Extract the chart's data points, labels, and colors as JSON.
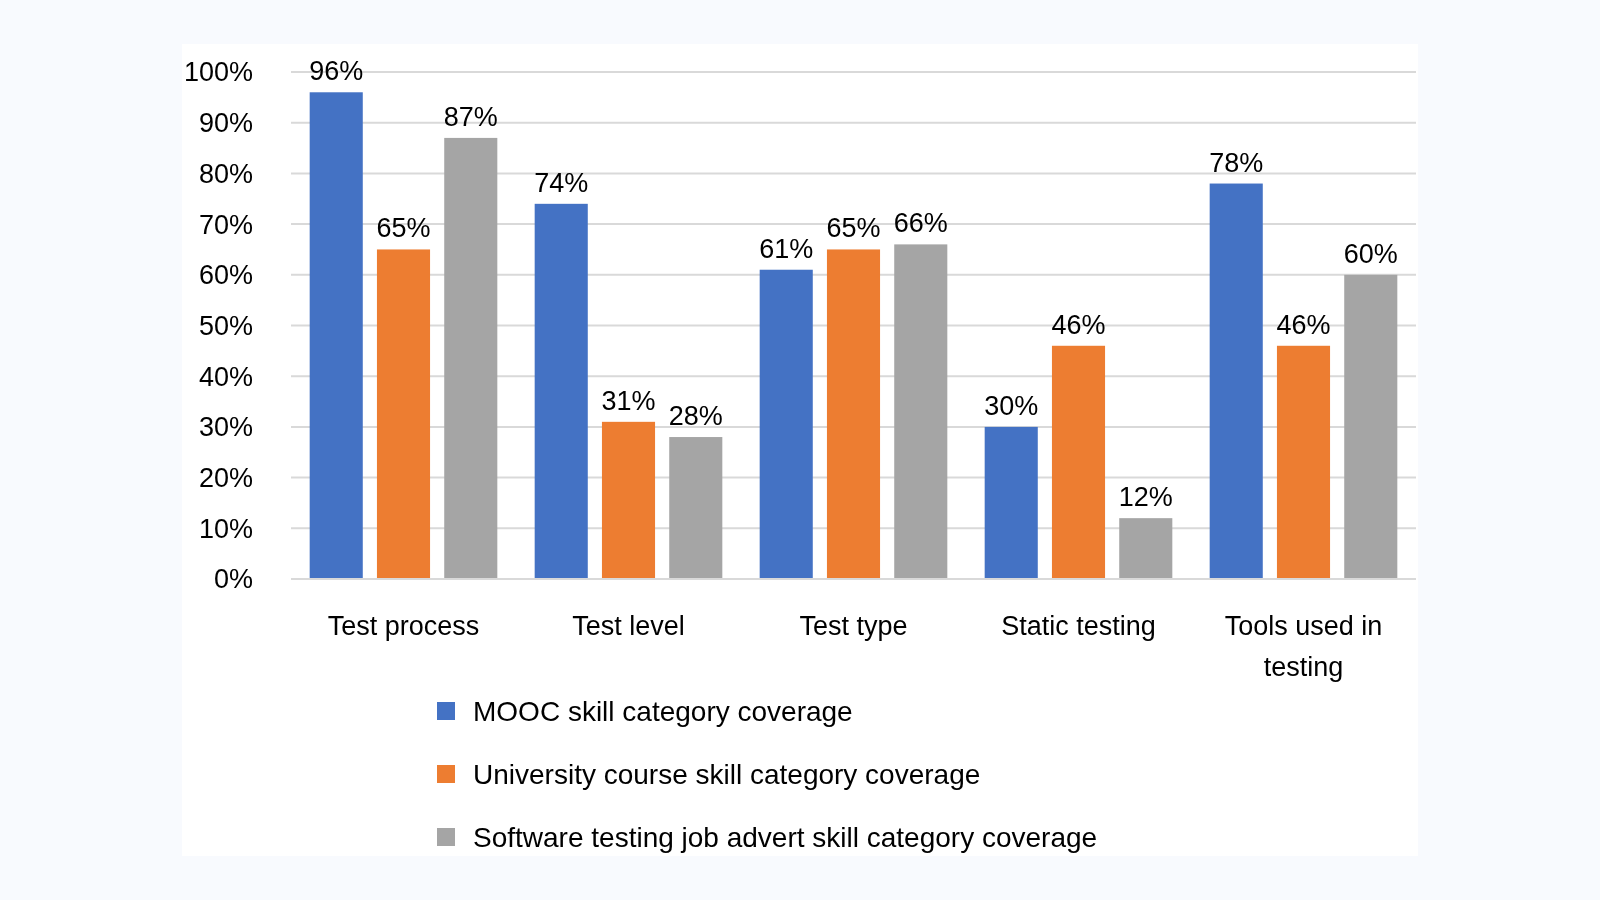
{
  "chart_data": {
    "type": "bar",
    "categories": [
      "Test process",
      "Test level",
      "Test type",
      "Static testing",
      "Tools used in testing"
    ],
    "series": [
      {
        "name": "MOOC skill category coverage",
        "color": "#4472c4",
        "values": [
          96,
          74,
          61,
          30,
          78
        ],
        "value_labels": [
          "96%",
          "74%",
          "61%",
          "30%",
          "78%"
        ]
      },
      {
        "name": "University course skill category coverage",
        "color": "#ed7d31",
        "values": [
          65,
          31,
          65,
          46,
          46
        ],
        "value_labels": [
          "65%",
          "31%",
          "65%",
          "46%",
          "46%"
        ]
      },
      {
        "name": "Software testing job advert skill category coverage",
        "color": "#a5a5a5",
        "values": [
          87,
          28,
          66,
          12,
          60
        ],
        "value_labels": [
          "87%",
          "28%",
          "66%",
          "12%",
          "60%"
        ]
      }
    ],
    "ylim": [
      0,
      100
    ],
    "yticks": [
      {
        "value": 0,
        "label": "0%"
      },
      {
        "value": 10,
        "label": "10%"
      },
      {
        "value": 20,
        "label": "20%"
      },
      {
        "value": 30,
        "label": "30%"
      },
      {
        "value": 40,
        "label": "40%"
      },
      {
        "value": 50,
        "label": "50%"
      },
      {
        "value": 60,
        "label": "60%"
      },
      {
        "value": 70,
        "label": "70%"
      },
      {
        "value": 80,
        "label": "80%"
      },
      {
        "value": 90,
        "label": "90%"
      },
      {
        "value": 100,
        "label": "100%"
      }
    ],
    "grid": "y",
    "legend": "bottom"
  }
}
